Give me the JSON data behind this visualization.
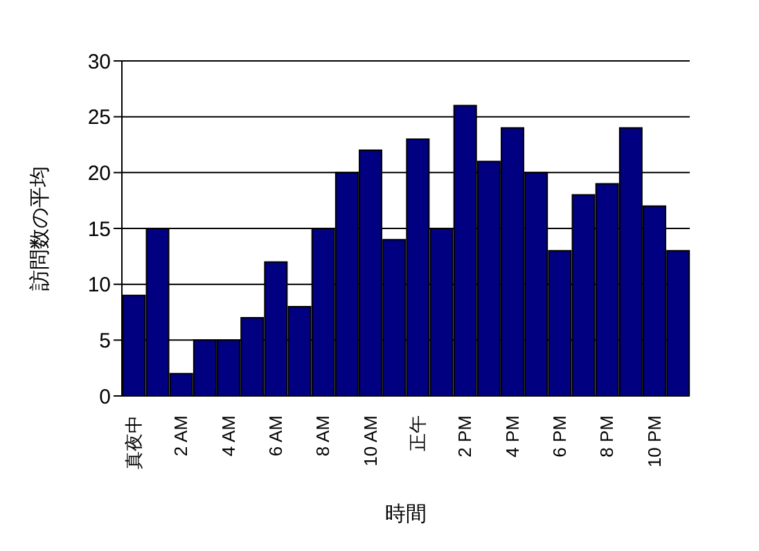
{
  "chart_data": {
    "type": "bar",
    "xlabel": "時間",
    "ylabel": "訪問数の平均",
    "categories": [
      "真夜中",
      null,
      "2 AM",
      null,
      "4 AM",
      null,
      "6 AM",
      null,
      "8 AM",
      null,
      "10 AM",
      null,
      "正午",
      null,
      "2 PM",
      null,
      "4 PM",
      null,
      "6 PM",
      null,
      "8 PM",
      null,
      "10 PM",
      null
    ],
    "values": [
      9,
      15,
      2,
      5,
      5,
      7,
      12,
      8,
      15,
      20,
      22,
      14,
      23,
      15,
      26,
      21,
      24,
      20,
      13,
      18,
      19,
      24,
      17,
      13
    ],
    "color": "#000080",
    "ylim": [
      0,
      30
    ],
    "yticks": [
      0,
      5,
      10,
      15,
      20,
      25,
      30
    ],
    "grid": "y"
  }
}
